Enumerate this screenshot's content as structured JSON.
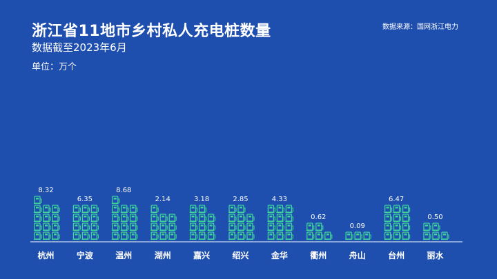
{
  "header": {
    "title": "浙江省11地市乡村私人充电桩数量",
    "subtitle": "数据截至2023年6月",
    "unit": "单位：万个",
    "source": "数据来源：国网浙江电力"
  },
  "colors": {
    "background": "#1f4fae",
    "icon": "#3fd49a",
    "text": "#ffffff"
  },
  "chart_data": {
    "type": "bar",
    "categories": [
      "杭州",
      "宁波",
      "温州",
      "湖州",
      "嘉兴",
      "绍兴",
      "金华",
      "衢州",
      "舟山",
      "台州",
      "丽水"
    ],
    "values": [
      8.32,
      6.35,
      8.68,
      2.14,
      3.18,
      2.85,
      4.33,
      0.62,
      0.09,
      6.47,
      0.5
    ],
    "value_labels": [
      "8.32",
      "6.35",
      "8.68",
      "2.14",
      "3.18",
      "2.85",
      "4.33",
      "0.62",
      "0.09",
      "6.47",
      "0.50"
    ],
    "icon_counts": [
      13,
      12,
      13,
      10,
      11,
      11,
      12,
      5,
      3,
      12,
      5
    ],
    "unit": "万个",
    "mark": "charging-pile-icon"
  }
}
